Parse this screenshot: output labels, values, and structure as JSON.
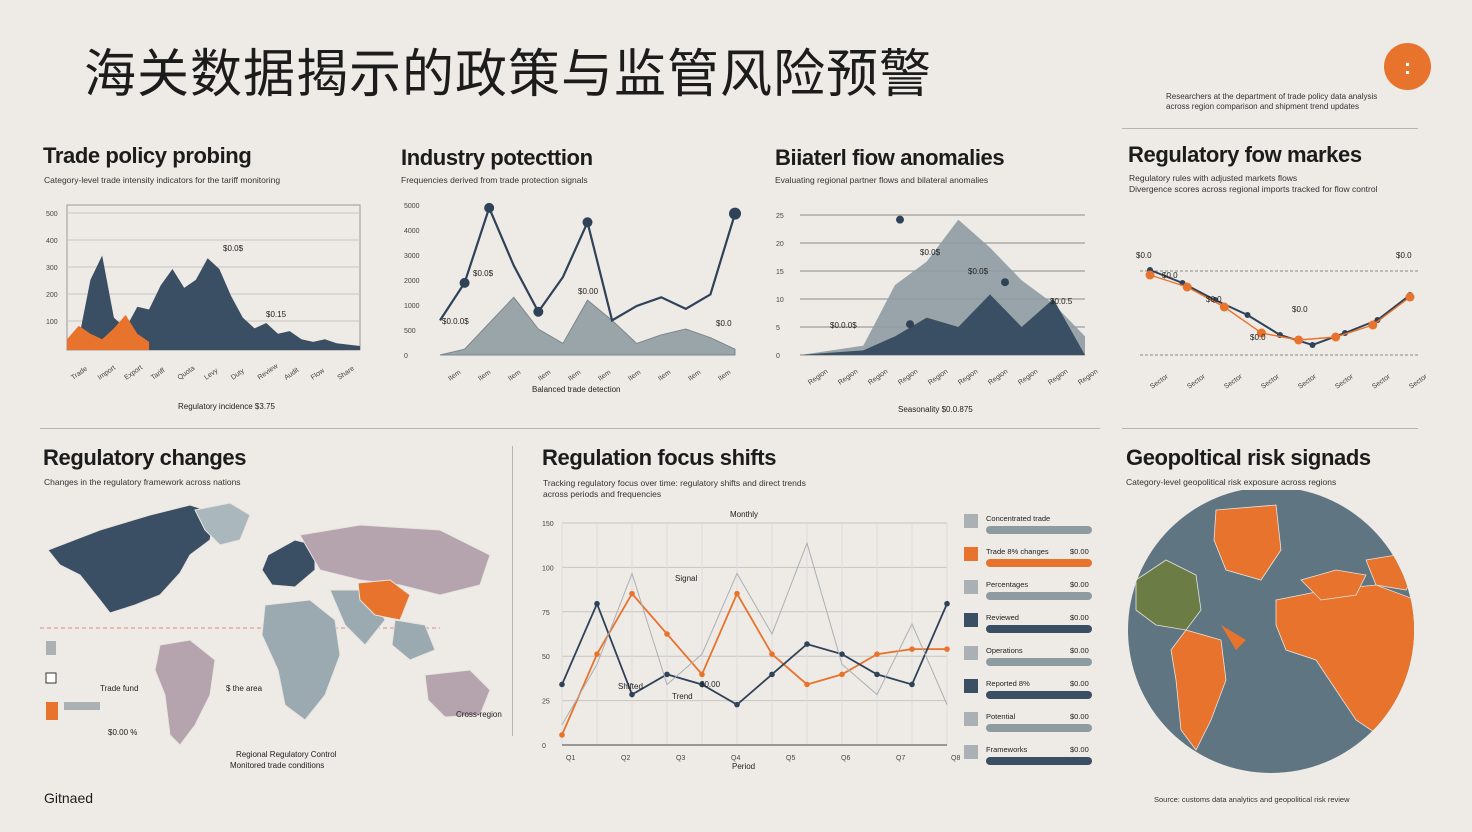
{
  "header": {
    "title": "海关数据揭示的政策与监管风险预警",
    "badge_label": ":",
    "notes": [
      "Researchers at the department of trade policy data analysis",
      "across region comparison and shipment trend updates"
    ]
  },
  "panels": {
    "trade_policy": {
      "title": "Trade policy probing",
      "subtitle": "Category-level trade intensity indicators for the tariff monitoring",
      "annotations": [
        "$0.0$",
        "$0.15"
      ],
      "xlabel": "Regulatory incidence $3.75"
    },
    "industry": {
      "title": "Industry potecttion",
      "subtitle": "Frequencies derived from trade protection signals",
      "annotations": [
        "$0.0$",
        "$0.00",
        "$0.0.0$",
        "$0.0"
      ],
      "xlabel": "Balanced trade detection"
    },
    "bilateral": {
      "title": "Biiaterl fiow anomalies",
      "subtitle": "Evaluating regional partner flows and bilateral anomalies",
      "annotations": [
        "$0.0$",
        "$0.0$",
        "$0.0.0$",
        "$0.0.5"
      ],
      "xlabel": "Seasonality $0.0.875"
    },
    "regulatory_markets": {
      "title": "Regulatory fow markes",
      "subtitle_lines": [
        "Regulatory rules with adjusted markets flows",
        "Divergence scores across regional imports tracked for flow control"
      ],
      "annotations": [
        "$0.0",
        "$0.0",
        "$0.0",
        "$0.0",
        "$0.0",
        "$0.0"
      ]
    },
    "regulatory_changes": {
      "title": "Regulatory changes",
      "subtitle": "Changes in the regulatory framework across nations",
      "legend": [
        "Trade fund",
        "$ the area",
        "$0.00 %"
      ],
      "caption_lines": [
        "Regional Regulatory Control",
        "Monitored trade conditions"
      ],
      "region_label": "Cross-region"
    },
    "regulation_focus": {
      "title": "Regulation focus shifts",
      "subtitle_lines": [
        "Tracking regulatory focus over time: regulatory shifts and direct trends",
        "across periods and frequencies"
      ],
      "chart_title": "Monthly",
      "xlabel": "Period",
      "annotations": [
        "Signal",
        "Shifted",
        "Trend",
        "$0.00"
      ],
      "legend": [
        {
          "label": "Concentrated trade",
          "value": "",
          "color": "#aab0b3"
        },
        {
          "label": "Trade 8% changes",
          "value": "$0.00",
          "color": "#e8732d"
        },
        {
          "label": "Percentages",
          "value": "$0.00",
          "color": "#aab0b3"
        },
        {
          "label": "Reviewed",
          "value": "$0.00",
          "color": "#3a4f63"
        },
        {
          "label": "Operations",
          "value": "$0.00",
          "color": "#aab0b3"
        },
        {
          "label": "Reported 8%",
          "value": "$0.00",
          "color": "#3a4f63"
        },
        {
          "label": "Potential",
          "value": "$0.00",
          "color": "#aab0b3"
        },
        {
          "label": "Frameworks",
          "value": "$0.00",
          "color": "#aab0b3"
        }
      ]
    },
    "geopolitical": {
      "title": "Geopoltical risk signads",
      "subtitle": "Category-level geopolitical risk exposure across regions"
    }
  },
  "footer": {
    "brand": "Gitnaed",
    "note": "Source: customs data analytics and geopolitical risk review"
  },
  "chart_data": [
    {
      "type": "area",
      "name": "Trade policy probing",
      "ylim": [
        0,
        500
      ],
      "yticks": [
        "500",
        "400",
        "300",
        "200",
        "100"
      ],
      "series": [
        {
          "name": "dark",
          "color": "#3a4f63",
          "x": [
            0,
            4,
            8,
            12,
            16,
            20,
            24,
            28,
            32,
            36,
            40,
            44,
            48,
            52,
            56,
            60,
            64,
            68,
            72,
            76,
            80,
            84,
            88,
            92,
            96,
            100
          ],
          "values": [
            10,
            40,
            260,
            350,
            120,
            80,
            160,
            150,
            240,
            300,
            230,
            260,
            340,
            300,
            200,
            120,
            80,
            100,
            60,
            70,
            40,
            30,
            40,
            25,
            20,
            15
          ]
        },
        {
          "name": "orange",
          "color": "#e8732d",
          "x": [
            0,
            4,
            8,
            12,
            16,
            20,
            24,
            28
          ],
          "values": [
            40,
            90,
            60,
            40,
            80,
            130,
            60,
            30
          ]
        }
      ],
      "xticks": [
        "Trade",
        "Import",
        "Export",
        "Tariff",
        "Quota",
        "Levy",
        "Duty",
        "Review",
        "Audit",
        "Flow",
        "Share"
      ]
    },
    {
      "type": "line",
      "name": "Industry potecttion",
      "ylim": [
        0,
        500
      ],
      "yticks": [
        "5000",
        "4000",
        "3000",
        "2000",
        "1000",
        "500",
        "0"
      ],
      "area_series": {
        "color": "#9aa5a9",
        "values": [
          0,
          20,
          110,
          200,
          90,
          40,
          190,
          120,
          40,
          70,
          90,
          60,
          20
        ]
      },
      "line_series": {
        "color": "#2f4258",
        "values": [
          120,
          250,
          510,
          310,
          150,
          270,
          460,
          120,
          170,
          200,
          160,
          210,
          490
        ]
      }
    },
    {
      "type": "area",
      "name": "Biiaterl fiow anomalies",
      "yticks": [
        "25",
        "20",
        "15",
        "10",
        "5",
        "0"
      ],
      "series": [
        {
          "name": "light",
          "color": "#8e9ca2",
          "values": [
            0,
            10,
            20,
            150,
            200,
            290,
            230,
            160,
            110,
            40
          ]
        },
        {
          "name": "dark",
          "color": "#3a4f63",
          "values": [
            0,
            5,
            10,
            40,
            80,
            60,
            130,
            60,
            120,
            0
          ]
        }
      ]
    },
    {
      "type": "line",
      "name": "Regulatory fow markes",
      "series": [
        {
          "name": "trend",
          "color": "#2f4258",
          "values": [
            85,
            72,
            55,
            40,
            20,
            10,
            22,
            35,
            60
          ]
        },
        {
          "name": "markers",
          "color": "#e8732d",
          "values": [
            80,
            68,
            48,
            22,
            15,
            18,
            30,
            58
          ]
        }
      ]
    },
    {
      "type": "line",
      "name": "Regulation focus shifts",
      "yticks": [
        "150",
        "100",
        "75",
        "50",
        "25",
        "0"
      ],
      "series": [
        {
          "name": "orange",
          "color": "#e8732d",
          "values": [
            10,
            90,
            150,
            110,
            70,
            150,
            90,
            60,
            70,
            90,
            95,
            95
          ]
        },
        {
          "name": "dark",
          "color": "#2f4258",
          "values": [
            60,
            140,
            50,
            70,
            60,
            40,
            70,
            100,
            90,
            70,
            60,
            140
          ]
        },
        {
          "name": "grey",
          "color": "#aab0b3",
          "values": [
            20,
            80,
            170,
            60,
            90,
            170,
            110,
            200,
            80,
            50,
            120,
            40
          ]
        }
      ]
    }
  ]
}
